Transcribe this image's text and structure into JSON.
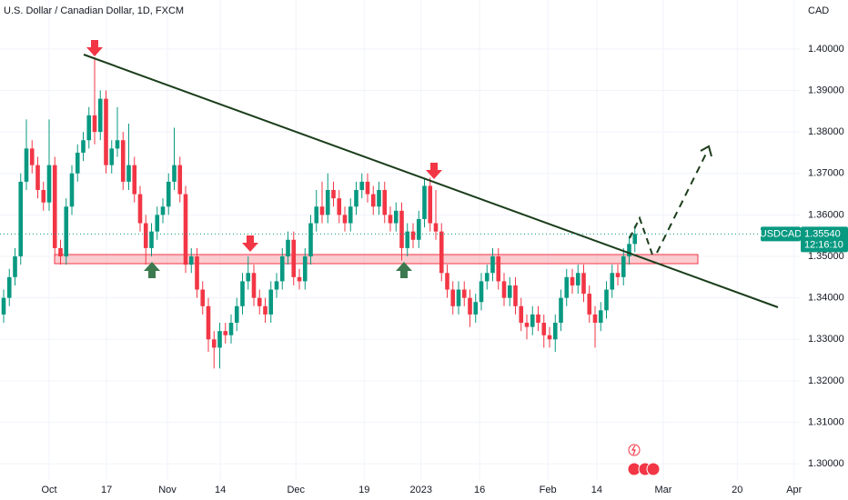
{
  "chart_data": {
    "type": "candlestick",
    "title": "U.S. Dollar / Canadian Dollar, 1D, FXCM",
    "unit": "CAD",
    "symbol": "USDCAD",
    "countdown": "12:16:10",
    "last_price": {
      "value": 1.3554,
      "label": "1.35540"
    },
    "up_color": "#089981",
    "down_color": "#f23645",
    "grid": true,
    "xlim": [
      -0.64,
      140.16
    ],
    "ylim": [
      1.2961,
      1.4118
    ],
    "yticks": [
      {
        "value": 1.3,
        "label": "1.30000"
      },
      {
        "value": 1.31,
        "label": "1.31000"
      },
      {
        "value": 1.32,
        "label": "1.32000"
      },
      {
        "value": 1.33,
        "label": "1.33000"
      },
      {
        "value": 1.34,
        "label": "1.34000"
      },
      {
        "value": 1.35,
        "label": "1.35000"
      },
      {
        "value": 1.36,
        "label": "1.36000"
      },
      {
        "value": 1.37,
        "label": "1.37000"
      },
      {
        "value": 1.38,
        "label": "1.38000"
      },
      {
        "value": 1.39,
        "label": "1.39000"
      },
      {
        "value": 1.4,
        "label": "1.40000"
      }
    ],
    "xticks": [
      {
        "value": 8,
        "label": "Oct"
      },
      {
        "value": 18.1,
        "label": "17"
      },
      {
        "value": 28.8,
        "label": "Nov"
      },
      {
        "value": 38.1,
        "label": "14"
      },
      {
        "value": 51.4,
        "label": "Dec"
      },
      {
        "value": 63.4,
        "label": "19"
      },
      {
        "value": 73.4,
        "label": "2023"
      },
      {
        "value": 83.7,
        "label": "16"
      },
      {
        "value": 95.7,
        "label": "Feb"
      },
      {
        "value": 104.3,
        "label": "14"
      },
      {
        "value": 116,
        "label": "Mar"
      },
      {
        "value": 129,
        "label": "20"
      },
      {
        "value": 139,
        "label": "Apr"
      }
    ],
    "x": [
      0,
      1,
      2,
      3,
      4,
      5,
      6,
      7,
      8,
      9,
      10,
      11,
      12,
      13,
      14,
      15,
      16,
      17,
      18,
      19,
      20,
      21,
      22,
      23,
      24,
      25,
      26,
      27,
      28,
      29,
      30,
      31,
      32,
      33,
      34,
      35,
      36,
      37,
      38,
      39,
      40,
      41,
      42,
      43,
      44,
      45,
      46,
      47,
      48,
      49,
      50,
      51,
      52,
      53,
      54,
      55,
      56,
      57,
      58,
      59,
      60,
      61,
      62,
      63,
      64,
      65,
      66,
      67,
      68,
      69,
      70,
      71,
      72,
      73,
      74,
      75,
      76,
      77,
      78,
      79,
      80,
      81,
      82,
      83,
      84,
      85,
      86,
      87,
      88,
      89,
      90,
      91,
      92,
      93,
      94,
      95,
      96,
      97,
      98,
      99,
      100,
      101,
      102,
      103,
      104,
      105,
      106,
      107,
      108,
      109,
      110,
      111
    ],
    "open": [
      1.336,
      1.34,
      1.345,
      1.35,
      1.368,
      1.376,
      1.372,
      1.366,
      1.363,
      1.372,
      1.352,
      1.35,
      1.362,
      1.37,
      1.375,
      1.378,
      1.384,
      1.38,
      1.388,
      1.372,
      1.376,
      1.378,
      1.368,
      1.372,
      1.365,
      1.358,
      1.352,
      1.356,
      1.36,
      1.362,
      1.368,
      1.372,
      1.365,
      1.348,
      1.35,
      1.342,
      1.338,
      1.33,
      1.328,
      1.332,
      1.331,
      1.334,
      1.338,
      1.344,
      1.346,
      1.34,
      1.338,
      1.336,
      1.342,
      1.344,
      1.35,
      1.354,
      1.345,
      1.344,
      1.35,
      1.358,
      1.362,
      1.36,
      1.366,
      1.364,
      1.36,
      1.358,
      1.362,
      1.366,
      1.368,
      1.365,
      1.362,
      1.366,
      1.36,
      1.358,
      1.361,
      1.352,
      1.356,
      1.354,
      1.359,
      1.367,
      1.358,
      1.356,
      1.346,
      1.342,
      1.338,
      1.342,
      1.34,
      1.336,
      1.339,
      1.344,
      1.346,
      1.35,
      1.344,
      1.34,
      1.343,
      1.338,
      1.334,
      1.333,
      1.336,
      1.334,
      1.331,
      1.33,
      1.334,
      1.34,
      1.345,
      1.343,
      1.346,
      1.341,
      1.336,
      1.334,
      1.337,
      1.342,
      1.346,
      1.345,
      1.35,
      1.353
    ],
    "high": [
      1.342,
      1.347,
      1.352,
      1.37,
      1.383,
      1.378,
      1.374,
      1.368,
      1.383,
      1.374,
      1.354,
      1.364,
      1.372,
      1.377,
      1.38,
      1.386,
      1.398,
      1.39,
      1.39,
      1.378,
      1.386,
      1.38,
      1.382,
      1.374,
      1.367,
      1.36,
      1.358,
      1.362,
      1.364,
      1.37,
      1.381,
      1.374,
      1.367,
      1.352,
      1.352,
      1.344,
      1.34,
      1.332,
      1.334,
      1.334,
      1.336,
      1.34,
      1.346,
      1.35,
      1.348,
      1.342,
      1.34,
      1.344,
      1.346,
      1.352,
      1.356,
      1.356,
      1.347,
      1.352,
      1.36,
      1.366,
      1.368,
      1.37,
      1.368,
      1.366,
      1.362,
      1.364,
      1.368,
      1.37,
      1.37,
      1.367,
      1.368,
      1.368,
      1.362,
      1.363,
      1.363,
      1.358,
      1.358,
      1.361,
      1.369,
      1.369,
      1.366,
      1.358,
      1.348,
      1.344,
      1.344,
      1.344,
      1.342,
      1.341,
      1.346,
      1.348,
      1.352,
      1.352,
      1.346,
      1.345,
      1.345,
      1.34,
      1.336,
      1.338,
      1.338,
      1.336,
      1.333,
      1.336,
      1.342,
      1.347,
      1.347,
      1.348,
      1.348,
      1.343,
      1.338,
      1.339,
      1.344,
      1.348,
      1.348,
      1.352,
      1.355,
      1.3575
    ],
    "low": [
      1.334,
      1.338,
      1.343,
      1.348,
      1.366,
      1.37,
      1.364,
      1.361,
      1.361,
      1.35,
      1.348,
      1.348,
      1.36,
      1.368,
      1.373,
      1.376,
      1.377,
      1.378,
      1.37,
      1.37,
      1.374,
      1.366,
      1.366,
      1.363,
      1.356,
      1.348,
      1.35,
      1.354,
      1.358,
      1.36,
      1.366,
      1.363,
      1.346,
      1.346,
      1.34,
      1.336,
      1.327,
      1.323,
      1.323,
      1.329,
      1.329,
      1.332,
      1.336,
      1.342,
      1.338,
      1.336,
      1.334,
      1.334,
      1.34,
      1.342,
      1.348,
      1.343,
      1.342,
      1.342,
      1.348,
      1.356,
      1.358,
      1.358,
      1.362,
      1.358,
      1.356,
      1.356,
      1.36,
      1.364,
      1.363,
      1.36,
      1.36,
      1.358,
      1.356,
      1.356,
      1.349,
      1.35,
      1.352,
      1.352,
      1.357,
      1.356,
      1.354,
      1.344,
      1.34,
      1.336,
      1.336,
      1.338,
      1.333,
      1.334,
      1.337,
      1.342,
      1.344,
      1.342,
      1.338,
      1.338,
      1.336,
      1.332,
      1.33,
      1.331,
      1.332,
      1.328,
      1.328,
      1.327,
      1.332,
      1.338,
      1.341,
      1.341,
      1.339,
      1.334,
      1.328,
      1.332,
      1.335,
      1.34,
      1.343,
      1.343,
      1.348,
      1.351
    ],
    "close": [
      1.34,
      1.345,
      1.35,
      1.368,
      1.376,
      1.372,
      1.366,
      1.363,
      1.372,
      1.352,
      1.35,
      1.362,
      1.37,
      1.375,
      1.378,
      1.384,
      1.38,
      1.388,
      1.372,
      1.376,
      1.378,
      1.368,
      1.372,
      1.365,
      1.358,
      1.352,
      1.356,
      1.36,
      1.362,
      1.368,
      1.372,
      1.365,
      1.348,
      1.35,
      1.342,
      1.338,
      1.33,
      1.328,
      1.332,
      1.331,
      1.334,
      1.338,
      1.344,
      1.346,
      1.34,
      1.338,
      1.336,
      1.342,
      1.344,
      1.35,
      1.354,
      1.345,
      1.344,
      1.35,
      1.358,
      1.362,
      1.36,
      1.366,
      1.364,
      1.36,
      1.358,
      1.362,
      1.366,
      1.368,
      1.365,
      1.362,
      1.366,
      1.36,
      1.358,
      1.361,
      1.352,
      1.356,
      1.354,
      1.359,
      1.367,
      1.358,
      1.356,
      1.346,
      1.342,
      1.338,
      1.342,
      1.34,
      1.336,
      1.339,
      1.344,
      1.346,
      1.35,
      1.344,
      1.34,
      1.343,
      1.338,
      1.334,
      1.333,
      1.336,
      1.334,
      1.331,
      1.33,
      1.334,
      1.34,
      1.345,
      1.343,
      1.346,
      1.341,
      1.336,
      1.334,
      1.337,
      1.342,
      1.346,
      1.345,
      1.35,
      1.353,
      1.3554
    ]
  }
}
